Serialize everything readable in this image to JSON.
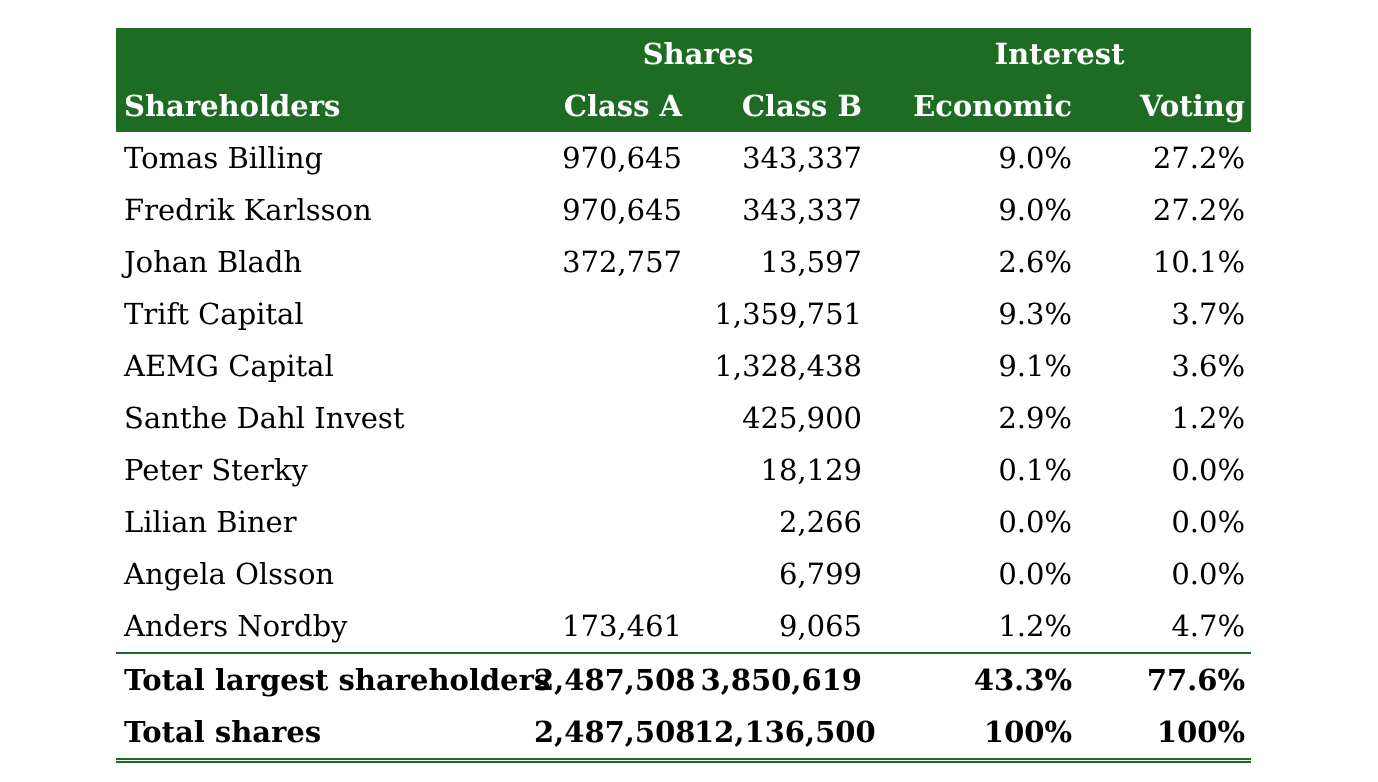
{
  "table": {
    "group_headers": {
      "shares": "Shares",
      "interest": "Interest"
    },
    "columns": [
      "Shareholders",
      "Class A",
      "Class B",
      "Economic",
      "Voting"
    ],
    "rows": [
      {
        "name": "Tomas Billing",
        "class_a": "970,645",
        "class_b": "343,337",
        "economic": "9.0%",
        "voting": "27.2%"
      },
      {
        "name": "Fredrik Karlsson",
        "class_a": "970,645",
        "class_b": "343,337",
        "economic": "9.0%",
        "voting": "27.2%"
      },
      {
        "name": "Johan Bladh",
        "class_a": "372,757",
        "class_b": "13,597",
        "economic": "2.6%",
        "voting": "10.1%"
      },
      {
        "name": "Trift Capital",
        "class_a": "",
        "class_b": "1,359,751",
        "economic": "9.3%",
        "voting": "3.7%"
      },
      {
        "name": "AEMG Capital",
        "class_a": "",
        "class_b": "1,328,438",
        "economic": "9.1%",
        "voting": "3.6%"
      },
      {
        "name": "Santhe Dahl Invest",
        "class_a": "",
        "class_b": "425,900",
        "economic": "2.9%",
        "voting": "1.2%"
      },
      {
        "name": "Peter Sterky",
        "class_a": "",
        "class_b": "18,129",
        "economic": "0.1%",
        "voting": "0.0%"
      },
      {
        "name": "Lilian Biner",
        "class_a": "",
        "class_b": "2,266",
        "economic": "0.0%",
        "voting": "0.0%"
      },
      {
        "name": "Angela Olsson",
        "class_a": "",
        "class_b": "6,799",
        "economic": "0.0%",
        "voting": "0.0%"
      },
      {
        "name": "Anders Nordby",
        "class_a": "173,461",
        "class_b": "9,065",
        "economic": "1.2%",
        "voting": "4.7%"
      }
    ],
    "totals": [
      {
        "name": "Total largest shareholders",
        "class_a": "2,487,508",
        "class_b": "3,850,619",
        "economic": "43.3%",
        "voting": "77.6%"
      },
      {
        "name": "Total shares",
        "class_a": "2,487,508",
        "class_b": "12,136,500",
        "economic": "100%",
        "voting": "100%"
      }
    ]
  },
  "colors": {
    "header_background": "#1e6b24",
    "header_text": "#ffffff",
    "rule": "#1e6b24"
  }
}
